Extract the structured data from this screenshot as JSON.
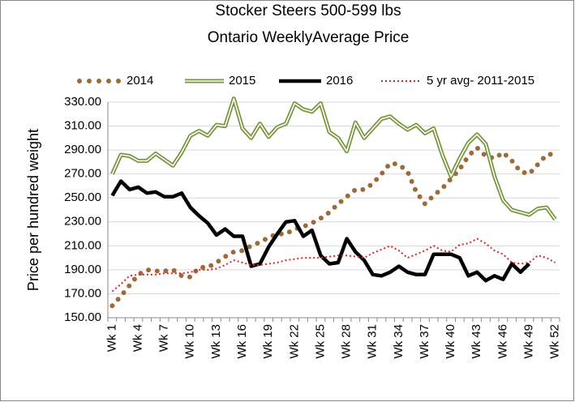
{
  "chart_data": {
    "type": "line",
    "title": "Stocker Steers 500-599 lbs",
    "subtitle": "Ontario WeeklyAverage Price",
    "y_label": "Price per hundred weight",
    "categories": [
      "Wk 1",
      null,
      null,
      "Wk 4",
      null,
      null,
      "Wk 7",
      null,
      null,
      "Wk 10",
      null,
      null,
      "Wk 13",
      null,
      null,
      "Wk 16",
      null,
      null,
      "Wk 19",
      null,
      null,
      "Wk 22",
      null,
      null,
      "Wk 25",
      null,
      null,
      "Wk 28",
      null,
      null,
      "Wk 31",
      null,
      null,
      "Wk 34",
      null,
      null,
      "Wk 37",
      null,
      null,
      "Wk 40",
      null,
      null,
      "Wk 43",
      null,
      null,
      "Wk 46",
      null,
      null,
      "Wk 49",
      null,
      null,
      "Wk 52"
    ],
    "ylim": [
      150,
      330
    ],
    "yticks": [
      {
        "value": 150,
        "label": "150.00"
      },
      {
        "value": 170,
        "label": "170.00"
      },
      {
        "value": 190,
        "label": "190.00"
      },
      {
        "value": 210,
        "label": "210.00"
      },
      {
        "value": 230,
        "label": "230.00"
      },
      {
        "value": 250,
        "label": "250.00"
      },
      {
        "value": 270,
        "label": "270.00"
      },
      {
        "value": 290,
        "label": "290.00"
      },
      {
        "value": 310,
        "label": "310.00"
      },
      {
        "value": 330,
        "label": "330.00"
      }
    ],
    "grid": true,
    "legend": "top",
    "series": [
      {
        "name": "2014",
        "color": "#9c6b3a",
        "style": "dots",
        "values": [
          160,
          168,
          177,
          186,
          190,
          189,
          189,
          190,
          185,
          184,
          192,
          192,
          196,
          201,
          205,
          206,
          210,
          213,
          217,
          220,
          220,
          224,
          226,
          229,
          233,
          238,
          245,
          251,
          257,
          257,
          262,
          270,
          279,
          278,
          272,
          255,
          245,
          252,
          258,
          266,
          274,
          285,
          292,
          285,
          283,
          288,
          281,
          272,
          270,
          278,
          286,
          287
        ]
      },
      {
        "name": "2015",
        "color": "#77933c",
        "style": "double",
        "values": [
          270,
          286,
          285,
          281,
          281,
          287,
          282,
          277,
          288,
          302,
          306,
          302,
          311,
          310,
          333,
          308,
          300,
          312,
          301,
          309,
          312,
          329,
          324,
          322,
          329,
          305,
          300,
          289,
          313,
          300,
          308,
          316,
          318,
          312,
          307,
          311,
          304,
          308,
          286,
          268,
          283,
          296,
          303,
          295,
          268,
          248,
          240,
          238,
          236,
          241,
          242,
          232
        ]
      },
      {
        "name": "2016",
        "color": "#000000",
        "style": "solid",
        "values": [
          252,
          264,
          257,
          259,
          254,
          255,
          251,
          251,
          254,
          242,
          235,
          229,
          219,
          224,
          218,
          218,
          193,
          195,
          209,
          220,
          230,
          231,
          218,
          223,
          202,
          195,
          196,
          216,
          205,
          198,
          186,
          185,
          188,
          193,
          188,
          186,
          186,
          203,
          203,
          203,
          200,
          185,
          188,
          181,
          185,
          182,
          195,
          188,
          195,
          null,
          null,
          null
        ]
      },
      {
        "name": "5 yr avg- 2011-2015",
        "color": "#d9262b",
        "style": "dotted",
        "values": [
          172,
          178,
          185,
          186,
          186,
          186,
          187,
          187,
          187,
          188,
          190,
          190,
          191,
          194,
          198,
          196,
          194,
          194,
          195,
          196,
          198,
          199,
          200,
          200,
          200,
          201,
          202,
          202,
          201,
          200,
          204,
          207,
          210,
          206,
          200,
          203,
          206,
          210,
          206,
          205,
          211,
          212,
          216,
          212,
          206,
          203,
          196,
          195,
          196,
          202,
          200,
          196
        ]
      }
    ]
  }
}
